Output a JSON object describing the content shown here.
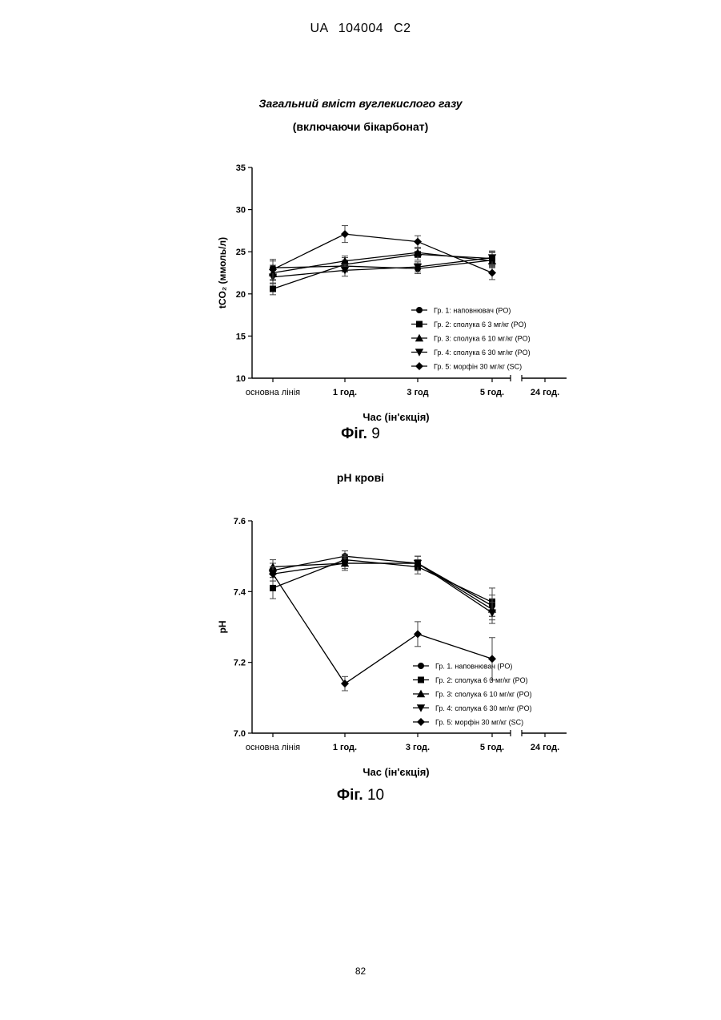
{
  "header": {
    "left": "UA",
    "number": "104004",
    "kind": "C2"
  },
  "page_number": "82",
  "chart_data": [
    {
      "type": "line",
      "title": "Загальний вміст вуглекислого газу",
      "subtitle": "(включаючи бікарбонат)",
      "ylabel": "tCO₂ (ммоль/л)",
      "xlabel": "Час (ін'єкція)",
      "figure_label": "Фіг.",
      "figure_number": "9",
      "categories": [
        "основна лінія",
        "1 год.",
        "3 год",
        "5 год.",
        "24 год."
      ],
      "ylim": [
        10,
        35
      ],
      "yticks": [
        10,
        15,
        20,
        25,
        30,
        35
      ],
      "series": [
        {
          "name": "Гр. 1: наповнювач (PO)",
          "marker": "circle",
          "values": [
            23.1,
            23.3,
            23.0,
            24.0,
            null
          ],
          "err": [
            0.8,
            0.7,
            0.6,
            0.9,
            null
          ]
        },
        {
          "name": "Гр. 2: сполука 6 3 мг/кг (PO)",
          "marker": "square",
          "values": [
            20.6,
            23.5,
            24.7,
            24.2,
            null
          ],
          "err": [
            0.7,
            0.8,
            0.7,
            0.8,
            null
          ]
        },
        {
          "name": "Гр. 3: сполука 6 10 мг/кг (PO)",
          "marker": "triangle-up",
          "values": [
            22.5,
            23.9,
            24.9,
            23.9,
            null
          ],
          "err": [
            0.9,
            0.6,
            0.6,
            0.7,
            null
          ]
        },
        {
          "name": "Гр. 4: сполука 6 30 мг/кг (PO)",
          "marker": "triangle-down",
          "values": [
            22.0,
            22.8,
            23.2,
            24.3,
            null
          ],
          "err": [
            0.8,
            0.7,
            0.6,
            0.8,
            null
          ]
        },
        {
          "name": "Гр. 5: морфін 30 мг/кг (SC)",
          "marker": "diamond",
          "values": [
            22.9,
            27.1,
            26.2,
            22.5,
            null
          ],
          "err": [
            1.2,
            1.0,
            0.7,
            0.8,
            null
          ]
        }
      ]
    },
    {
      "type": "line",
      "title": "pH крові",
      "ylabel": "pH",
      "xlabel": "Час (ін'єкція)",
      "figure_label": "Фіг.",
      "figure_number": "10",
      "categories": [
        "основна лінія",
        "1 год.",
        "3 год.",
        "5 год.",
        "24 год."
      ],
      "ylim": [
        7.0,
        7.6
      ],
      "yticks": [
        "7.0",
        "7.2",
        "7.4",
        "7.6"
      ],
      "series": [
        {
          "name": "Гр. 1. наповнювач (PO)",
          "marker": "circle",
          "values": [
            7.46,
            7.5,
            7.48,
            7.36,
            null
          ],
          "err": [
            0.02,
            0.015,
            0.02,
            0.03,
            null
          ]
        },
        {
          "name": "Гр. 2: сполука 6 3 мг/кг (PO)",
          "marker": "square",
          "values": [
            7.41,
            7.49,
            7.47,
            7.37,
            null
          ],
          "err": [
            0.03,
            0.015,
            0.02,
            0.04,
            null
          ]
        },
        {
          "name": "Гр. 3: сполука 6 10 мг/кг (PO)",
          "marker": "triangle-up",
          "values": [
            7.47,
            7.48,
            7.48,
            7.35,
            null
          ],
          "err": [
            0.02,
            0.02,
            0.02,
            0.03,
            null
          ]
        },
        {
          "name": "Гр. 4: сполука 6 30 мг/кг (PO)",
          "marker": "triangle-down",
          "values": [
            7.45,
            7.48,
            7.48,
            7.34,
            null
          ],
          "err": [
            0.02,
            0.015,
            0.02,
            0.03,
            null
          ]
        },
        {
          "name": "Гр. 5: морфін 30 мг/кг (SC)",
          "marker": "diamond",
          "values": [
            7.45,
            7.14,
            7.28,
            7.21,
            null
          ],
          "err": [
            0.02,
            0.02,
            0.035,
            0.06,
            null
          ]
        }
      ]
    }
  ]
}
